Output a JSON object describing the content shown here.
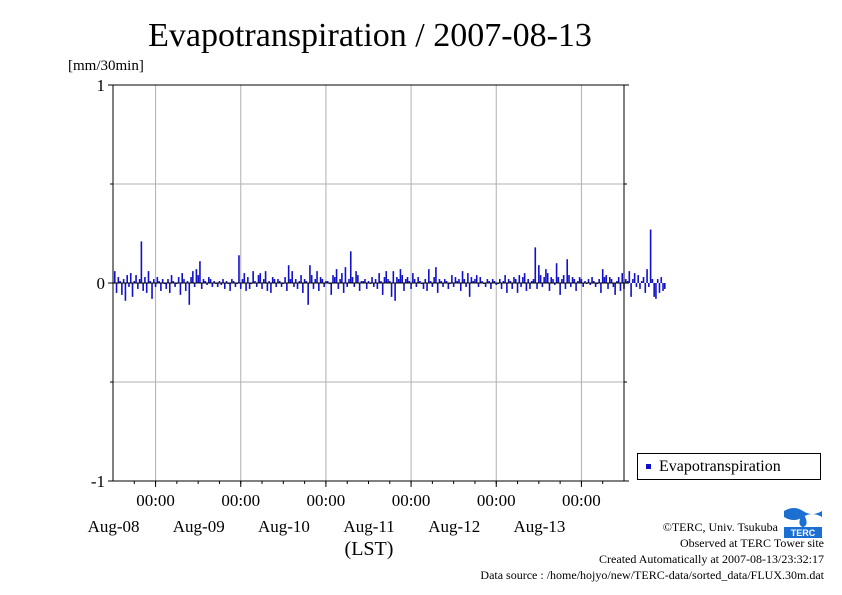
{
  "chart_data": {
    "type": "bar",
    "title": "Evapotranspiration / 2007-08-13",
    "ylabel": "[mm/30min]",
    "xlabel": "(LST)",
    "ylim": [
      -1,
      1
    ],
    "y_ticks": [
      {
        "value": 1,
        "label": "1"
      },
      {
        "value": 0,
        "label": "0"
      },
      {
        "value": -1,
        "label": "-1"
      }
    ],
    "x_domain": [
      "2007-08-08T00:00",
      "2007-08-14T00:00"
    ],
    "x_major_ticks": [
      {
        "time": "2007-08-08T12:00",
        "time_label": "00:00",
        "date_label": "Aug-08"
      },
      {
        "time": "2007-08-09T12:00",
        "time_label": "00:00",
        "date_label": "Aug-09"
      },
      {
        "time": "2007-08-10T12:00",
        "time_label": "00:00",
        "date_label": "Aug-10"
      },
      {
        "time": "2007-08-11T12:00",
        "time_label": "00:00",
        "date_label": "Aug-11"
      },
      {
        "time": "2007-08-12T12:00",
        "time_label": "00:00",
        "date_label": "Aug-12"
      },
      {
        "time": "2007-08-13T12:00",
        "time_label": "00:00",
        "date_label": "Aug-13"
      }
    ],
    "grid": true,
    "legend_position": "right",
    "series": [
      {
        "name": "Evapotranspiration",
        "color": "#1010c8",
        "x_start": "2007-08-08T00:30",
        "x_step": "30min",
        "values": [
          0.06,
          -0.05,
          0.03,
          0.01,
          -0.06,
          0.02,
          -0.09,
          0.04,
          -0.02,
          0.05,
          -0.07,
          0.01,
          0.04,
          -0.03,
          0.02,
          0.21,
          -0.04,
          0.03,
          -0.05,
          0.06,
          0.01,
          -0.08,
          0.02,
          -0.02,
          0.03,
          0.01,
          -0.04,
          0.02,
          0.0,
          -0.03,
          0.02,
          -0.05,
          0.04,
          0.01,
          -0.02,
          0.0,
          0.03,
          -0.06,
          0.05,
          0.02,
          -0.04,
          0.01,
          -0.11,
          0.03,
          0.06,
          -0.02,
          0.07,
          0.04,
          0.11,
          -0.03,
          0.02,
          0.01,
          -0.01,
          0.03,
          0.02,
          -0.02,
          0.01,
          0.0,
          -0.02,
          0.01,
          -0.01,
          0.02,
          -0.03,
          0.01,
          0.0,
          -0.04,
          0.02,
          0.01,
          -0.02,
          0.0,
          0.14,
          -0.03,
          0.02,
          0.05,
          -0.04,
          0.03,
          -0.03,
          0.0,
          0.06,
          0.01,
          -0.02,
          0.04,
          0.05,
          -0.03,
          0.02,
          0.06,
          -0.04,
          0.01,
          -0.05,
          0.03,
          0.02,
          -0.02,
          0.02,
          0.01,
          -0.02,
          0.0,
          0.03,
          -0.04,
          0.09,
          0.02,
          0.06,
          -0.02,
          0.02,
          -0.03,
          0.01,
          0.04,
          -0.05,
          0.02,
          0.01,
          -0.11,
          0.09,
          0.04,
          -0.03,
          0.02,
          0.06,
          -0.04,
          0.03,
          0.02,
          -0.02,
          0.01,
          0.01,
          0.0,
          -0.06,
          0.04,
          0.03,
          0.07,
          -0.03,
          0.02,
          0.05,
          -0.05,
          0.08,
          -0.02,
          0.02,
          0.16,
          0.03,
          -0.02,
          0.06,
          0.04,
          -0.04,
          0.01,
          0.01,
          0.02,
          -0.03,
          0.01,
          0.0,
          0.03,
          -0.02,
          0.02,
          -0.03,
          0.05,
          0.01,
          -0.06,
          0.03,
          0.06,
          0.02,
          0.01,
          -0.07,
          0.06,
          -0.09,
          0.03,
          0.02,
          0.07,
          0.04,
          -0.04,
          0.02,
          0.03,
          0.01,
          -0.03,
          0.05,
          0.02,
          -0.02,
          0.03,
          0.01,
          0.0,
          -0.03,
          0.02,
          -0.04,
          0.07,
          0.01,
          -0.02,
          0.03,
          0.08,
          -0.05,
          0.02,
          0.01,
          -0.02,
          0.02,
          0.01,
          -0.03,
          0.0,
          0.04,
          -0.02,
          0.03,
          0.01,
          0.02,
          -0.04,
          0.06,
          0.02,
          -0.02,
          0.05,
          -0.07,
          0.03,
          0.01,
          0.02,
          0.04,
          -0.02,
          0.03,
          0.01,
          0.0,
          -0.02,
          0.02,
          0.01,
          -0.03,
          0.02,
          0.01,
          -0.01,
          0.0,
          0.02,
          -0.03,
          0.01,
          0.04,
          -0.05,
          0.02,
          0.01,
          -0.03,
          0.03,
          0.02,
          -0.05,
          0.04,
          -0.02,
          0.03,
          0.05,
          -0.04,
          0.02,
          -0.03,
          0.01,
          0.02,
          0.18,
          -0.03,
          0.09,
          0.04,
          -0.02,
          0.03,
          0.07,
          0.05,
          -0.04,
          0.03,
          0.02,
          -0.01,
          0.1,
          0.03,
          -0.06,
          0.02,
          0.04,
          -0.03,
          0.12,
          0.04,
          -0.02,
          0.03,
          0.02,
          -0.04,
          0.01,
          0.03,
          0.02,
          -0.02,
          0.01,
          0.0,
          0.02,
          -0.01,
          0.03,
          0.01,
          -0.02,
          0.0,
          0.02,
          -0.05,
          0.07,
          0.03,
          0.04,
          -0.03,
          0.03,
          0.02,
          -0.02,
          -0.06,
          0.01,
          0.03,
          -0.04,
          0.05,
          -0.03,
          0.02,
          0.01,
          0.06,
          -0.07,
          0.02,
          0.05,
          -0.02,
          0.04,
          -0.03,
          0.01,
          0.03,
          -0.05,
          0.07,
          -0.02,
          0.27,
          0.02,
          -0.07,
          -0.08,
          0.02,
          -0.05,
          0.03,
          -0.04,
          -0.03
        ]
      }
    ]
  },
  "legend": {
    "label": "Evapotranspiration",
    "color": "#1010c8"
  },
  "credits": {
    "copyright": "©TERC, Univ. Tsukuba",
    "site": "Observed at TERC Tower site",
    "created": "Created Automatically at 2007-08-13/23:32:17",
    "source": "Data source : /home/hojyo/new/TERC-data/sorted_data/FLUX.30m.dat",
    "logo_text": "TERC",
    "logo_color": "#1a6fd0"
  }
}
